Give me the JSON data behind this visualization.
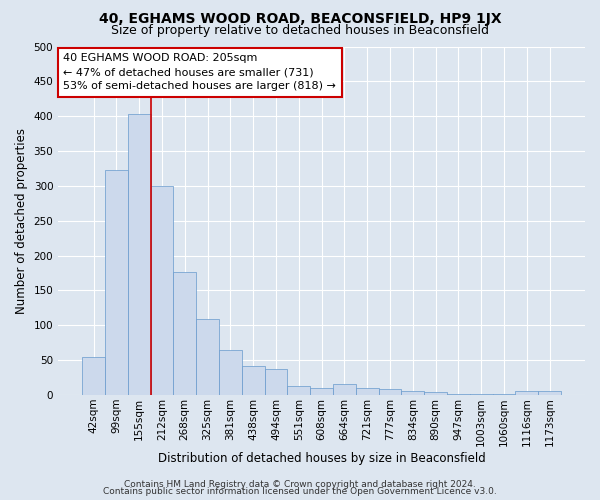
{
  "title": "40, EGHAMS WOOD ROAD, BEACONSFIELD, HP9 1JX",
  "subtitle": "Size of property relative to detached houses in Beaconsfield",
  "xlabel": "Distribution of detached houses by size in Beaconsfield",
  "ylabel": "Number of detached properties",
  "bar_labels": [
    "42sqm",
    "99sqm",
    "155sqm",
    "212sqm",
    "268sqm",
    "325sqm",
    "381sqm",
    "438sqm",
    "494sqm",
    "551sqm",
    "608sqm",
    "664sqm",
    "721sqm",
    "777sqm",
    "834sqm",
    "890sqm",
    "947sqm",
    "1003sqm",
    "1060sqm",
    "1116sqm",
    "1173sqm"
  ],
  "bar_values": [
    55,
    323,
    403,
    300,
    176,
    109,
    65,
    41,
    37,
    13,
    10,
    16,
    10,
    8,
    6,
    4,
    1,
    1,
    1,
    6,
    6
  ],
  "bar_color": "#ccd9ec",
  "bar_edge_color": "#6699cc",
  "vline_x_index": 2.5,
  "vline_color": "#cc0000",
  "annotation_text": "40 EGHAMS WOOD ROAD: 205sqm\n← 47% of detached houses are smaller (731)\n53% of semi-detached houses are larger (818) →",
  "annotation_box_facecolor": "#ffffff",
  "annotation_box_edgecolor": "#cc0000",
  "ylim": [
    0,
    500
  ],
  "yticks": [
    0,
    50,
    100,
    150,
    200,
    250,
    300,
    350,
    400,
    450,
    500
  ],
  "bg_color": "#dde6f0",
  "plot_bg_color": "#dde6f0",
  "footer_line1": "Contains HM Land Registry data © Crown copyright and database right 2024.",
  "footer_line2": "Contains public sector information licensed under the Open Government Licence v3.0.",
  "title_fontsize": 10,
  "subtitle_fontsize": 9,
  "xlabel_fontsize": 8.5,
  "ylabel_fontsize": 8.5,
  "tick_fontsize": 7.5,
  "annotation_fontsize": 8,
  "footer_fontsize": 6.5
}
